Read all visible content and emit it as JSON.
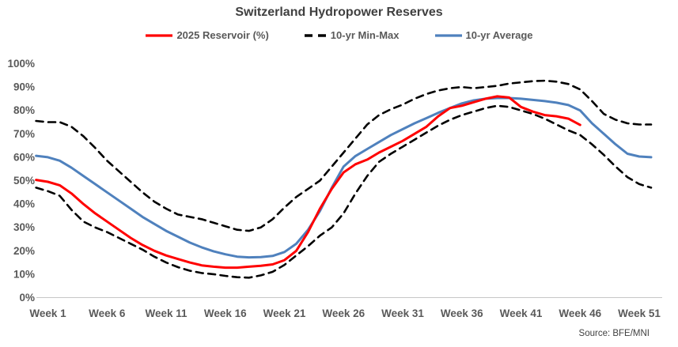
{
  "header": {
    "title": "Switzerland Hydropower Reserves"
  },
  "legend": {
    "items": [
      {
        "label": "2025 Reservoir (%)",
        "color": "#FF0000",
        "style": "solid"
      },
      {
        "label": "10-yr Min-Max",
        "color": "#000000",
        "style": "dashed"
      },
      {
        "label": "10-yr Average",
        "color": "#4F81BD",
        "style": "solid"
      }
    ]
  },
  "footer": {
    "source": "Source: BFE/MNI"
  },
  "chart_data": {
    "type": "line",
    "title": "Switzerland Hydropower Reserves",
    "xlabel": "",
    "ylabel": "",
    "ylim": [
      0,
      100
    ],
    "grid": false,
    "legend_position": "top",
    "y_axis": {
      "ticks": [
        {
          "value": 0,
          "label": "0%"
        },
        {
          "value": 10,
          "label": "10%"
        },
        {
          "value": 20,
          "label": "20%"
        },
        {
          "value": 30,
          "label": "30%"
        },
        {
          "value": 40,
          "label": "40%"
        },
        {
          "value": 50,
          "label": "50%"
        },
        {
          "value": 60,
          "label": "60%"
        },
        {
          "value": 70,
          "label": "70%"
        },
        {
          "value": 80,
          "label": "80%"
        },
        {
          "value": 90,
          "label": "90%"
        },
        {
          "value": 100,
          "label": "100%"
        }
      ]
    },
    "x_axis": {
      "unit": "week",
      "ticks": [
        {
          "week": 1,
          "label": "Week 1"
        },
        {
          "week": 6,
          "label": "Week 6"
        },
        {
          "week": 11,
          "label": "Week 11"
        },
        {
          "week": 16,
          "label": "Week 16"
        },
        {
          "week": 21,
          "label": "Week 21"
        },
        {
          "week": 26,
          "label": "Week 26"
        },
        {
          "week": 31,
          "label": "Week 31"
        },
        {
          "week": 36,
          "label": "Week 36"
        },
        {
          "week": 41,
          "label": "Week 41"
        },
        {
          "week": 46,
          "label": "Week 46"
        },
        {
          "week": 51,
          "label": "Week 51"
        }
      ]
    },
    "series": [
      {
        "id": "ten-yr-min",
        "name": "10-yr Min",
        "color": "#000000",
        "style": "dashed",
        "width": 2.6,
        "start_week": 0,
        "values": [
          47,
          45.5,
          43.5,
          37.5,
          32.5,
          30,
          28,
          25.5,
          23,
          20.5,
          17.5,
          15,
          13,
          11.5,
          10.5,
          10,
          9.3,
          8.7,
          8.5,
          9.5,
          11,
          14,
          18,
          22,
          26.5,
          30,
          36,
          44.5,
          52,
          58,
          61.5,
          64.5,
          67.5,
          70.5,
          73.5,
          76,
          78,
          79.5,
          81,
          82,
          81.5,
          80,
          78.5,
          76.5,
          74,
          71.5,
          69.5,
          65.5,
          61,
          56,
          51.5,
          48.5,
          47
        ]
      },
      {
        "id": "ten-yr-max",
        "name": "10-yr Max",
        "color": "#000000",
        "style": "dashed",
        "width": 2.6,
        "start_week": 0,
        "values": [
          75.5,
          75,
          75,
          73,
          69,
          64,
          58.5,
          54,
          49.5,
          45,
          41,
          38,
          35.5,
          34.5,
          33.5,
          32,
          30.5,
          29,
          28.5,
          30,
          33.5,
          38.5,
          43,
          46.5,
          50,
          56,
          62,
          68,
          74,
          78,
          80.5,
          82.5,
          85,
          87,
          88.5,
          89.5,
          90,
          89.5,
          90,
          90.5,
          91.5,
          92,
          92.5,
          92.7,
          92.3,
          91.3,
          89,
          84,
          78.5,
          76,
          74.5,
          74,
          74
        ]
      },
      {
        "id": "ten-yr-average",
        "name": "10-yr Average",
        "color": "#4F81BD",
        "style": "solid",
        "width": 3,
        "start_week": 0,
        "values": [
          60.6,
          60,
          58.5,
          55.5,
          52,
          48.5,
          45,
          41.5,
          38,
          34.5,
          31.5,
          28.5,
          26,
          23.5,
          21.5,
          19.8,
          18.5,
          17.5,
          17.2,
          17.3,
          17.8,
          19.5,
          23,
          29,
          37,
          47,
          56,
          60.5,
          63.5,
          66.5,
          69.5,
          72,
          74.5,
          76.7,
          79,
          81,
          83,
          84.3,
          85,
          85.3,
          85.3,
          85,
          84.5,
          84,
          83.3,
          82.3,
          80,
          74.5,
          70,
          65.5,
          61.5,
          60.3,
          60
        ]
      },
      {
        "id": "reservoir-2025",
        "name": "2025 Reservoir (%)",
        "color": "#FF0000",
        "style": "solid",
        "width": 3,
        "start_week": 0,
        "values": [
          50.3,
          49.5,
          48,
          44.5,
          40,
          36,
          32.5,
          29,
          25.5,
          22.5,
          20,
          18,
          16.5,
          15,
          13.8,
          13.2,
          12.8,
          12.8,
          13.2,
          13.6,
          14.2,
          16,
          20,
          28,
          38,
          46.5,
          53.5,
          57,
          59,
          62,
          64.5,
          67,
          70,
          73,
          77.5,
          81,
          82,
          83.5,
          85,
          86,
          85.5,
          81.5,
          79.5,
          78,
          77.5,
          76.5,
          73.8
        ]
      }
    ]
  }
}
